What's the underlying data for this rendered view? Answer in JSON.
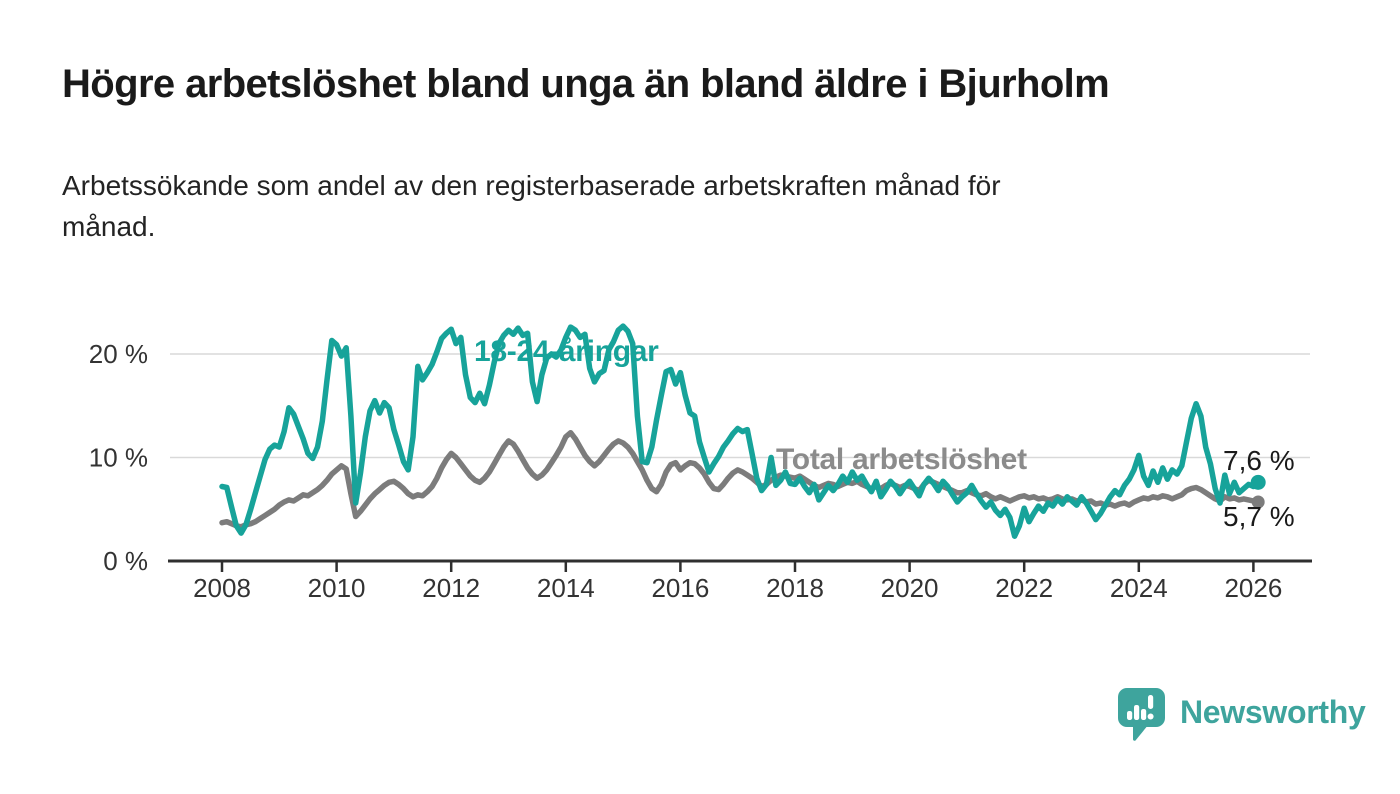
{
  "header": {
    "title": "Högre arbetslöshet bland unga än bland äldre i Bjurholm",
    "subtitle_line1": "Arbetssökande som andel av den registerbaserade arbetskraften månad för",
    "subtitle_line2": "månad."
  },
  "chart_data": {
    "type": "line",
    "title": "Högre arbetslöshet bland unga än bland äldre i Bjurholm",
    "subtitle": "Arbetssökande som andel av den registerbaserade arbetskraften månad för månad.",
    "unit": "%",
    "x_start_year": 2008,
    "x_start_month": 1,
    "x_step_months": 1,
    "ylim": [
      0,
      24
    ],
    "grid": "horizontal-gridlines-at-10-and-20",
    "legend_position": "inline-labels-on-lines",
    "yticks": [
      {
        "value": 0,
        "label": "0 %"
      },
      {
        "value": 10,
        "label": "10 %"
      },
      {
        "value": 20,
        "label": "20 %"
      }
    ],
    "xticks": [
      {
        "value": 2008,
        "label": "2008"
      },
      {
        "value": 2010,
        "label": "2010"
      },
      {
        "value": 2012,
        "label": "2012"
      },
      {
        "value": 2014,
        "label": "2014"
      },
      {
        "value": 2016,
        "label": "2016"
      },
      {
        "value": 2018,
        "label": "2018"
      },
      {
        "value": 2020,
        "label": "2020"
      },
      {
        "value": 2022,
        "label": "2022"
      },
      {
        "value": 2024,
        "label": "2024"
      },
      {
        "value": 2026,
        "label": "2026"
      }
    ],
    "series": [
      {
        "name": "18-24-åringar",
        "label": "18-24-åringar",
        "color": "#17A39A",
        "end_label": "7,6 %",
        "end_value": 7.6,
        "values": [
          7.2,
          7.1,
          5.2,
          3.4,
          2.7,
          3.5,
          5.0,
          6.6,
          8.2,
          9.8,
          10.8,
          11.2,
          11.0,
          12.5,
          14.8,
          14.2,
          13.0,
          11.8,
          10.4,
          9.9,
          11.0,
          13.5,
          17.5,
          21.3,
          20.9,
          19.8,
          20.6,
          14.0,
          5.6,
          8.5,
          12.0,
          14.5,
          15.5,
          14.3,
          15.3,
          14.8,
          12.7,
          11.2,
          9.6,
          8.8,
          12.0,
          18.8,
          17.5,
          18.2,
          19.0,
          20.2,
          21.5,
          22.0,
          22.4,
          21.0,
          21.6,
          18.0,
          15.8,
          15.3,
          16.2,
          15.2,
          17.0,
          19.2,
          21.0,
          21.8,
          22.3,
          21.9,
          22.5,
          21.8,
          22.0,
          17.3,
          15.4,
          18.0,
          19.6,
          20.0,
          19.7,
          20.4,
          21.6,
          22.6,
          22.3,
          21.6,
          21.9,
          18.6,
          17.3,
          18.1,
          18.4,
          20.4,
          21.2,
          22.3,
          22.7,
          22.2,
          21.0,
          14.0,
          9.6,
          9.5,
          11.0,
          13.6,
          16.0,
          18.3,
          18.5,
          17.1,
          18.2,
          16.0,
          14.3,
          14.0,
          11.5,
          10.0,
          8.6,
          9.4,
          10.1,
          11.0,
          11.6,
          12.3,
          12.8,
          12.5,
          12.7,
          10.4,
          8.0,
          6.8,
          7.4,
          10.0,
          7.3,
          7.8,
          8.6,
          7.5,
          7.4,
          8.0,
          7.2,
          6.6,
          7.4,
          5.9,
          6.6,
          7.3,
          6.8,
          7.4,
          8.2,
          7.6,
          8.6,
          7.8,
          8.2,
          7.4,
          6.7,
          7.7,
          6.2,
          6.9,
          7.7,
          7.2,
          6.5,
          7.2,
          7.7,
          7.0,
          6.3,
          7.4,
          8.0,
          7.5,
          6.8,
          7.7,
          7.2,
          6.4,
          5.7,
          6.2,
          6.6,
          7.3,
          6.5,
          5.8,
          5.2,
          5.7,
          4.9,
          4.4,
          5.0,
          4.2,
          2.4,
          3.4,
          5.1,
          3.8,
          4.6,
          5.3,
          4.8,
          5.6,
          5.3,
          6.0,
          5.5,
          6.2,
          5.8,
          5.4,
          6.2,
          5.6,
          4.8,
          4.0,
          4.6,
          5.4,
          6.2,
          6.8,
          6.4,
          7.3,
          7.9,
          8.8,
          10.2,
          8.2,
          7.3,
          8.7,
          7.6,
          9.0,
          7.9,
          8.8,
          8.4,
          9.2,
          11.5,
          13.8,
          15.2,
          14.0,
          11.0,
          9.4,
          7.0,
          5.6,
          8.3,
          6.5,
          7.6,
          6.6,
          7.0,
          7.4,
          7.2,
          7.6
        ]
      },
      {
        "name": "Total arbetslöshet",
        "label": "Total arbetslöshet",
        "color": "#7C7C7C",
        "end_label": "5,7 %",
        "end_value": 5.7,
        "values": [
          3.7,
          3.8,
          3.6,
          3.4,
          3.3,
          3.5,
          3.6,
          3.8,
          4.1,
          4.4,
          4.7,
          5.0,
          5.4,
          5.7,
          5.9,
          5.8,
          6.1,
          6.4,
          6.3,
          6.6,
          6.9,
          7.3,
          7.8,
          8.4,
          8.8,
          9.2,
          8.9,
          6.5,
          4.3,
          4.8,
          5.4,
          6.0,
          6.5,
          6.9,
          7.3,
          7.6,
          7.7,
          7.4,
          7.0,
          6.5,
          6.2,
          6.4,
          6.3,
          6.7,
          7.2,
          8.0,
          9.0,
          9.8,
          10.4,
          10.0,
          9.4,
          8.8,
          8.2,
          7.8,
          7.6,
          8.0,
          8.6,
          9.4,
          10.2,
          11.0,
          11.6,
          11.3,
          10.6,
          9.8,
          9.0,
          8.4,
          8.0,
          8.3,
          8.8,
          9.5,
          10.2,
          11.0,
          12.0,
          12.4,
          11.8,
          11.0,
          10.2,
          9.6,
          9.2,
          9.6,
          10.2,
          10.8,
          11.3,
          11.6,
          11.4,
          11.0,
          10.4,
          9.6,
          8.8,
          7.8,
          7.0,
          6.7,
          7.4,
          8.6,
          9.3,
          9.5,
          8.8,
          9.2,
          9.5,
          9.4,
          9.0,
          8.4,
          7.6,
          7.0,
          6.9,
          7.4,
          8.0,
          8.5,
          8.8,
          8.6,
          8.3,
          8.0,
          7.6,
          7.2,
          7.4,
          7.8,
          8.1,
          8.3,
          8.2,
          8.1,
          8.0,
          8.2,
          7.9,
          7.6,
          7.3,
          7.1,
          7.3,
          7.5,
          7.4,
          7.2,
          7.4,
          7.6,
          7.5,
          7.7,
          7.4,
          7.2,
          7.0,
          7.2,
          7.0,
          7.3,
          7.5,
          7.3,
          7.1,
          7.3,
          7.2,
          7.0,
          6.8,
          7.4,
          7.8,
          7.6,
          7.4,
          7.2,
          7.0,
          6.8,
          6.6,
          6.6,
          6.8,
          6.6,
          6.4,
          6.3,
          6.5,
          6.2,
          6.0,
          6.2,
          6.0,
          5.8,
          6.0,
          6.2,
          6.3,
          6.1,
          6.2,
          6.0,
          6.1,
          5.9,
          6.0,
          6.2,
          6.0,
          5.9,
          6.0,
          5.8,
          5.9,
          5.7,
          5.8,
          5.5,
          5.6,
          5.4,
          5.5,
          5.3,
          5.5,
          5.6,
          5.4,
          5.7,
          5.9,
          6.1,
          6.0,
          6.2,
          6.1,
          6.3,
          6.2,
          6.0,
          6.2,
          6.4,
          6.8,
          7.0,
          7.1,
          6.9,
          6.6,
          6.3,
          6.0,
          5.8,
          6.2,
          6.0,
          6.1,
          5.9,
          6.0,
          5.9,
          5.8,
          5.7
        ]
      }
    ]
  },
  "footer": {
    "brand": "Newsworthy"
  },
  "colors": {
    "accent_teal": "#17A39A",
    "logo_teal": "#3EA49D",
    "series_gray": "#7C7C7C",
    "series_label_gray": "#8B8B8B",
    "axis": "#2F2F2F",
    "gridline": "#D9D9D9",
    "tick_text": "#333333",
    "end_label_text": "#1A1A1A",
    "background": "#FFFFFF"
  }
}
